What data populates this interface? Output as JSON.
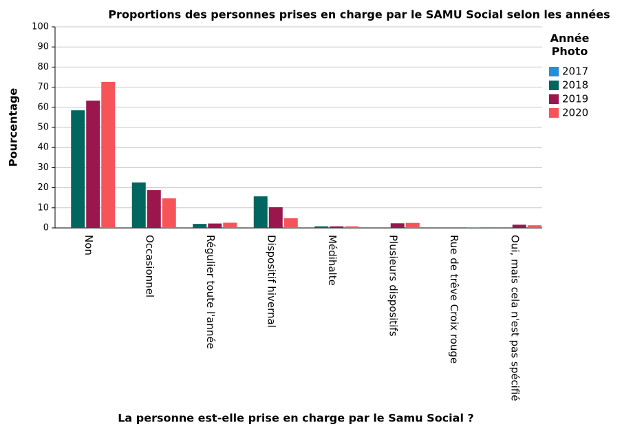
{
  "chart_data": {
    "type": "bar",
    "title": "Proportions des personnes prises en charge par le SAMU Social selon les années",
    "x_label": "La personne est-elle prise en charge par le Samu Social ?",
    "y_label": "Pourcentage",
    "legend_title": "Année Photo",
    "categories": [
      "Non",
      "Occasionnel",
      "Régulier toute l'année",
      "Dispositif hivernal",
      "Médihalte",
      "Plusieurs dispositifs",
      "Rue de trêve Croix rouge",
      "Oui, mais cela n'est pas spécifié"
    ],
    "series": [
      {
        "name": "2017",
        "color": "#1f8fe0",
        "values": [
          null,
          null,
          null,
          null,
          null,
          null,
          null,
          null
        ]
      },
      {
        "name": "2018",
        "color": "#00665f",
        "values": [
          58.5,
          22.6,
          2.0,
          15.7,
          0.8,
          null,
          null,
          null
        ]
      },
      {
        "name": "2019",
        "color": "#99174d",
        "values": [
          63.3,
          18.8,
          2.2,
          10.3,
          0.8,
          2.3,
          null,
          1.6
        ]
      },
      {
        "name": "2020",
        "color": "#f75459",
        "values": [
          72.6,
          14.7,
          2.6,
          4.8,
          0.8,
          2.5,
          0.3,
          1.3
        ]
      }
    ],
    "ylim": [
      0,
      100
    ],
    "yticks": [
      0,
      10,
      20,
      30,
      40,
      50,
      60,
      70,
      80,
      90,
      100
    ],
    "grid": true,
    "legend": "right"
  }
}
